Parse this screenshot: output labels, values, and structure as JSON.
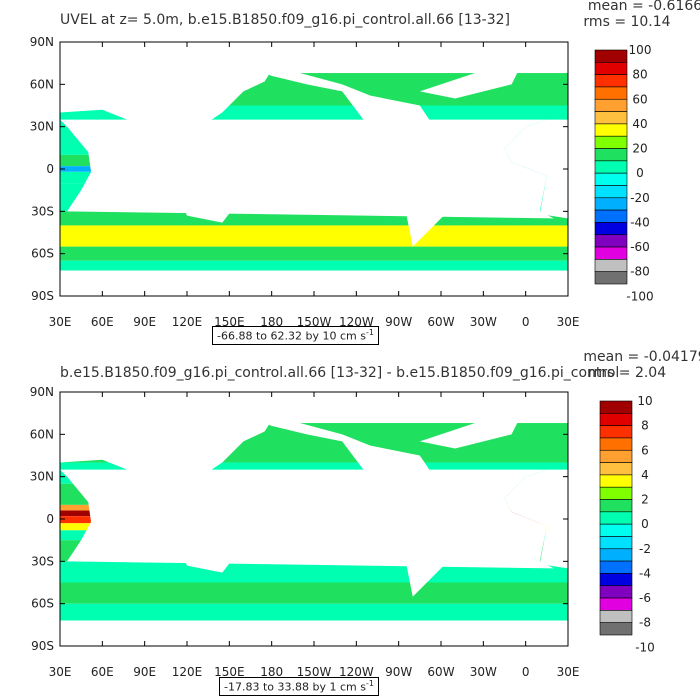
{
  "chart_data": [
    {
      "type": "heatmap",
      "title": "UVEL at z=    5.0m, b.e15.B1850.f09_g16.pi_control.all.66  [13-32]",
      "stat_mean": "mean = -0.6166",
      "stat_rms": "rms = 10.14",
      "x_ticks": [
        "30E",
        "60E",
        "90E",
        "120E",
        "150E",
        "180",
        "150W",
        "120W",
        "90W",
        "60W",
        "30W",
        "0",
        "30E"
      ],
      "y_ticks": [
        "90N",
        "60N",
        "30N",
        "0",
        "30S",
        "60S",
        "90S"
      ],
      "y_values": [
        90,
        60,
        30,
        0,
        -30,
        -60,
        -90
      ],
      "colorbar_labels": [
        "100",
        "80",
        "60",
        "40",
        "20",
        "0",
        "-20",
        "-40",
        "-60",
        "-80",
        "-100"
      ],
      "range_label": "-66.88 to 62.32 by 10 cm s",
      "range_unit_exp": "-1"
    },
    {
      "type": "heatmap",
      "title": "b.e15.B1850.f09_g16.pi_control.all.66  [13-32]  -  b.e15.B1850.f09_g16.pi_control",
      "stat_mean": "mean = -0.04179",
      "stat_rms": "rms = 2.04",
      "x_ticks": [
        "30E",
        "60E",
        "90E",
        "120E",
        "150E",
        "180",
        "150W",
        "120W",
        "90W",
        "60W",
        "30W",
        "0",
        "30E"
      ],
      "y_ticks": [
        "90N",
        "60N",
        "30N",
        "0",
        "30S",
        "60S",
        "90S"
      ],
      "y_values": [
        90,
        60,
        30,
        0,
        -30,
        -60,
        -90
      ],
      "colorbar_labels": [
        "10",
        "8",
        "6",
        "4",
        "2",
        "0",
        "-2",
        "-4",
        "-6",
        "-8",
        "-10"
      ],
      "range_label": "-17.83 to 33.88 by 1 cm s",
      "range_unit_exp": "-1"
    }
  ],
  "colors": {
    "scale": [
      "#a00000",
      "#e00000",
      "#ff3000",
      "#ff7000",
      "#ffa030",
      "#ffc040",
      "#ffff00",
      "#80ff00",
      "#20e060",
      "#00ffb0",
      "#00ffee",
      "#00e0ff",
      "#00b0ff",
      "#0070ff",
      "#0000e0",
      "#8000c0",
      "#e000e0",
      "#c0c0c0",
      "#707070"
    ],
    "ocean": "#00e0ff",
    "land": "#ffffff"
  }
}
